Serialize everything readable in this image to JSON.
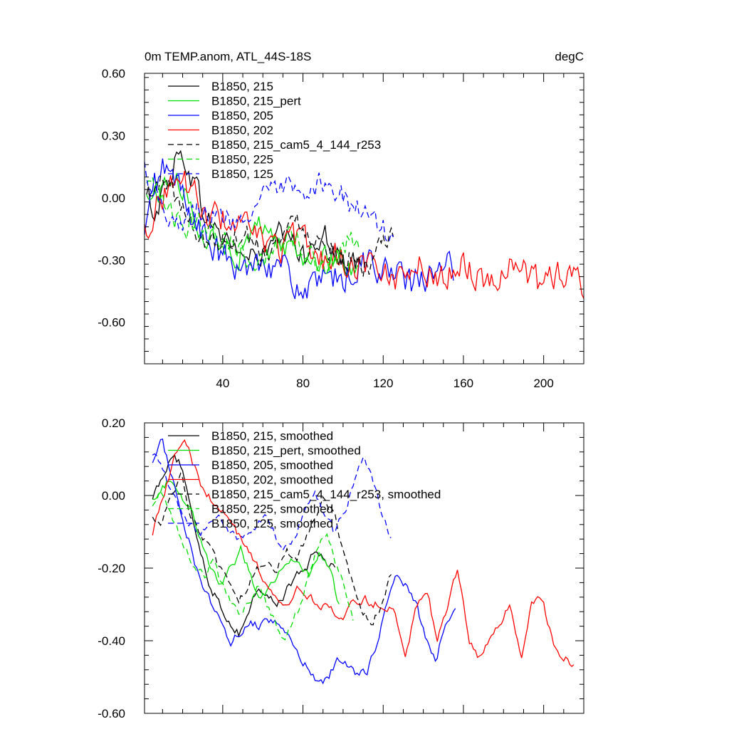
{
  "chart_data": [
    {
      "id": "top",
      "type": "line",
      "title": "0m TEMP.anom, ATL_44S-18S",
      "units": "degC",
      "xlim": [
        1,
        220
      ],
      "ylim": [
        -0.8,
        0.6
      ],
      "x_ticks": [
        40,
        80,
        120,
        160,
        200
      ],
      "x_tick_labels": [
        "40",
        "80",
        "120",
        "160",
        "200"
      ],
      "y_ticks": [
        0.6,
        0.3,
        0.0,
        -0.3,
        -0.6
      ],
      "y_tick_labels": [
        "0.60",
        "0.30",
        "0.00",
        "-0.30",
        "-0.60"
      ],
      "legend": "top-left",
      "series": [
        {
          "name": "B1850, 215",
          "color": "#000000",
          "dash": "solid",
          "x_start": 2,
          "x_end": 108,
          "base": [
            0.0,
            -0.05,
            0.04,
            0.18,
            0.2,
            0.1,
            -0.05,
            -0.12,
            -0.18,
            -0.22,
            -0.25,
            -0.3,
            -0.28,
            -0.27,
            -0.2,
            -0.18,
            -0.25,
            -0.3,
            -0.2,
            -0.15,
            -0.25,
            -0.3,
            -0.35,
            -0.3
          ],
          "amp": 0.11
        },
        {
          "name": "B1850, 215_pert",
          "color": "#00dd00",
          "dash": "solid",
          "x_start": 2,
          "x_end": 108,
          "base": [
            0.0,
            0.02,
            0.06,
            0.1,
            0.02,
            -0.08,
            -0.15,
            -0.2,
            -0.25,
            -0.22,
            -0.28,
            -0.2,
            -0.15,
            -0.12,
            -0.2,
            -0.25,
            -0.22,
            -0.3,
            -0.28,
            -0.3,
            -0.32,
            -0.3,
            -0.33,
            -0.3
          ],
          "amp": 0.1
        },
        {
          "name": "B1850, 205",
          "color": "#0000ff",
          "dash": "solid",
          "x_start": 1,
          "x_end": 155,
          "base": [
            -0.2,
            0.05,
            0.15,
            0.08,
            0.0,
            -0.1,
            -0.2,
            -0.25,
            -0.3,
            -0.35,
            -0.35,
            -0.3,
            -0.28,
            -0.32,
            -0.35,
            -0.4,
            -0.45,
            -0.45,
            -0.42,
            -0.4,
            -0.38,
            -0.35,
            -0.32,
            -0.3,
            -0.35,
            -0.38,
            -0.4,
            -0.42,
            -0.4,
            -0.38,
            -0.35,
            -0.35
          ],
          "amp": 0.13
        },
        {
          "name": "B1850, 202",
          "color": "#ff0000",
          "dash": "solid",
          "x_start": 1,
          "x_end": 220,
          "base": [
            -0.15,
            -0.05,
            0.05,
            0.1,
            0.05,
            -0.05,
            -0.1,
            -0.1,
            -0.12,
            -0.15,
            -0.2,
            -0.22,
            -0.25,
            -0.2,
            -0.22,
            -0.25,
            -0.3,
            -0.28,
            -0.3,
            -0.32,
            -0.3,
            -0.35,
            -0.4,
            -0.35,
            -0.3,
            -0.35,
            -0.4,
            -0.35,
            -0.3,
            -0.35,
            -0.4,
            -0.38,
            -0.32,
            -0.3,
            -0.38,
            -0.42,
            -0.38,
            -0.35,
            -0.4,
            -0.42
          ],
          "amp": 0.12
        },
        {
          "name": "B1850, 215_cam5_4_144_r253",
          "color": "#000000",
          "dash": "8,5",
          "x_start": 3,
          "x_end": 125,
          "base": [
            0.0,
            0.05,
            0.1,
            0.0,
            -0.1,
            -0.15,
            -0.2,
            -0.22,
            -0.2,
            -0.18,
            -0.15,
            -0.2,
            -0.25,
            -0.22,
            -0.2,
            -0.15,
            -0.1,
            -0.15,
            -0.2,
            -0.22,
            -0.25,
            -0.28,
            -0.3,
            -0.32,
            -0.3,
            -0.25,
            -0.2
          ],
          "amp": 0.1
        },
        {
          "name": "B1850, 225",
          "color": "#00dd00",
          "dash": "8,5",
          "x_start": 2,
          "x_end": 108,
          "base": [
            0.05,
            0.02,
            -0.05,
            -0.1,
            -0.15,
            -0.12,
            -0.1,
            -0.12,
            -0.18,
            -0.2,
            -0.25,
            -0.28,
            -0.3,
            -0.28,
            -0.22,
            -0.18,
            -0.2,
            -0.25,
            -0.3,
            -0.35,
            -0.3,
            -0.25,
            -0.2,
            -0.2
          ],
          "amp": 0.1
        },
        {
          "name": "B1850, 125",
          "color": "#0000ff",
          "dash": "8,5",
          "x_start": 1,
          "x_end": 125,
          "base": [
            0.15,
            0.05,
            -0.05,
            -0.08,
            -0.1,
            -0.08,
            -0.05,
            -0.08,
            -0.1,
            -0.12,
            -0.08,
            -0.05,
            -0.02,
            0.0,
            0.02,
            0.05,
            0.0,
            -0.05,
            0.05,
            0.1,
            0.05,
            0.0,
            -0.05,
            -0.1,
            -0.12,
            -0.15,
            -0.2
          ],
          "amp": 0.1
        }
      ]
    },
    {
      "id": "bottom",
      "type": "line",
      "title": "",
      "xlim": [
        1,
        220
      ],
      "ylim": [
        -0.6,
        0.2
      ],
      "x_ticks": [
        40,
        80,
        120,
        160,
        200
      ],
      "y_ticks": [
        0.2,
        0.0,
        -0.2,
        -0.4,
        -0.6
      ],
      "y_tick_labels": [
        "0.20",
        "0.00",
        "-0.20",
        "-0.40",
        "-0.60"
      ],
      "legend": "top-left",
      "series": [
        {
          "name": "B1850, 215, smoothed",
          "color": "#000000",
          "dash": "solid",
          "x_start": 5,
          "x_end": 96,
          "base": [
            0.0,
            0.05,
            0.12,
            0.08,
            -0.05,
            -0.15,
            -0.25,
            -0.3,
            -0.35,
            -0.38,
            -0.32,
            -0.25,
            -0.28,
            -0.3,
            -0.26,
            -0.22,
            -0.2,
            -0.15,
            -0.18,
            -0.2
          ],
          "amp": 0.02
        },
        {
          "name": "B1850, 215_pert, smoothed",
          "color": "#00dd00",
          "dash": "solid",
          "x_start": 5,
          "x_end": 98,
          "base": [
            0.0,
            0.02,
            0.05,
            0.0,
            -0.05,
            -0.12,
            -0.2,
            -0.25,
            -0.2,
            -0.15,
            -0.22,
            -0.28,
            -0.25,
            -0.2,
            -0.18,
            -0.2,
            -0.22,
            -0.15,
            -0.2,
            -0.3
          ],
          "amp": 0.02
        },
        {
          "name": "B1850, 205, smoothed",
          "color": "#0000ff",
          "dash": "solid",
          "x_start": 5,
          "x_end": 156,
          "base": [
            0.1,
            0.15,
            0.05,
            -0.05,
            -0.15,
            -0.25,
            -0.3,
            -0.35,
            -0.4,
            -0.38,
            -0.35,
            -0.36,
            -0.34,
            -0.35,
            -0.4,
            -0.45,
            -0.48,
            -0.52,
            -0.5,
            -0.45,
            -0.47,
            -0.5,
            -0.48,
            -0.4,
            -0.3,
            -0.22,
            -0.25,
            -0.3,
            -0.4,
            -0.45,
            -0.35,
            -0.3
          ],
          "amp": 0.02
        },
        {
          "name": "B1850, 202, smoothed",
          "color": "#ff0000",
          "dash": "solid",
          "x_start": 5,
          "x_end": 215,
          "base": [
            -0.1,
            0.0,
            0.1,
            0.15,
            0.08,
            0.0,
            -0.02,
            -0.05,
            -0.1,
            -0.15,
            -0.2,
            -0.25,
            -0.28,
            -0.3,
            -0.25,
            -0.28,
            -0.3,
            -0.32,
            -0.35,
            -0.3,
            -0.28,
            -0.3,
            -0.3,
            -0.32,
            -0.45,
            -0.3,
            -0.25,
            -0.4,
            -0.3,
            -0.2,
            -0.4,
            -0.45,
            -0.4,
            -0.35,
            -0.3,
            -0.45,
            -0.3,
            -0.28,
            -0.4,
            -0.45,
            -0.46
          ],
          "amp": 0.02
        },
        {
          "name": "B1850, 215_cam5_4_144_r253, smoothed",
          "color": "#000000",
          "dash": "8,5",
          "x_start": 5,
          "x_end": 124,
          "base": [
            -0.05,
            -0.08,
            0.0,
            0.05,
            -0.05,
            -0.1,
            -0.15,
            -0.2,
            -0.25,
            -0.3,
            -0.25,
            -0.2,
            -0.18,
            -0.2,
            -0.15,
            -0.18,
            -0.12,
            -0.05,
            0.0,
            -0.05,
            -0.15,
            -0.25,
            -0.32,
            -0.35,
            -0.3,
            -0.22
          ],
          "amp": 0.02
        },
        {
          "name": "B1850, 225, smoothed",
          "color": "#00dd00",
          "dash": "8,5",
          "x_start": 5,
          "x_end": 105,
          "base": [
            -0.02,
            0.0,
            -0.05,
            -0.1,
            -0.15,
            -0.2,
            -0.22,
            -0.18,
            -0.25,
            -0.3,
            -0.32,
            -0.3,
            -0.25,
            -0.3,
            -0.35,
            -0.4,
            -0.35,
            -0.3,
            -0.2,
            -0.15,
            -0.1,
            -0.2,
            -0.25,
            -0.35
          ],
          "amp": 0.02
        },
        {
          "name": "B1850, 125, smoothed",
          "color": "#0000ff",
          "dash": "8,5",
          "x_start": 5,
          "x_end": 124,
          "base": [
            0.12,
            0.08,
            0.0,
            -0.05,
            -0.08,
            -0.1,
            -0.08,
            -0.05,
            -0.1,
            -0.12,
            -0.1,
            -0.08,
            -0.05,
            -0.12,
            -0.15,
            -0.1,
            -0.05,
            0.0,
            -0.05,
            -0.1,
            -0.05,
            0.02,
            0.1,
            0.05,
            -0.05,
            -0.12
          ],
          "amp": 0.02
        }
      ]
    }
  ]
}
